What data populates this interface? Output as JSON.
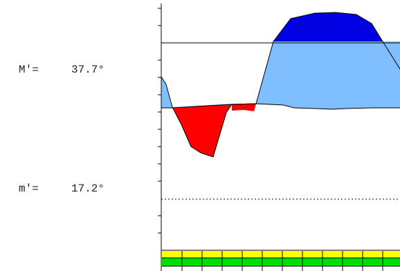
{
  "readouts": {
    "max": {
      "label": "M′=",
      "value": "37.7°"
    },
    "min": {
      "label": "m′=",
      "value": "17.2°"
    }
  },
  "colors": {
    "positive_light": "#7fbfff",
    "positive_dark": "#0000e0",
    "negative": "#ff0000",
    "bar_top": "#ffff00",
    "bar_bottom": "#00e000",
    "line": "#000000"
  }
}
